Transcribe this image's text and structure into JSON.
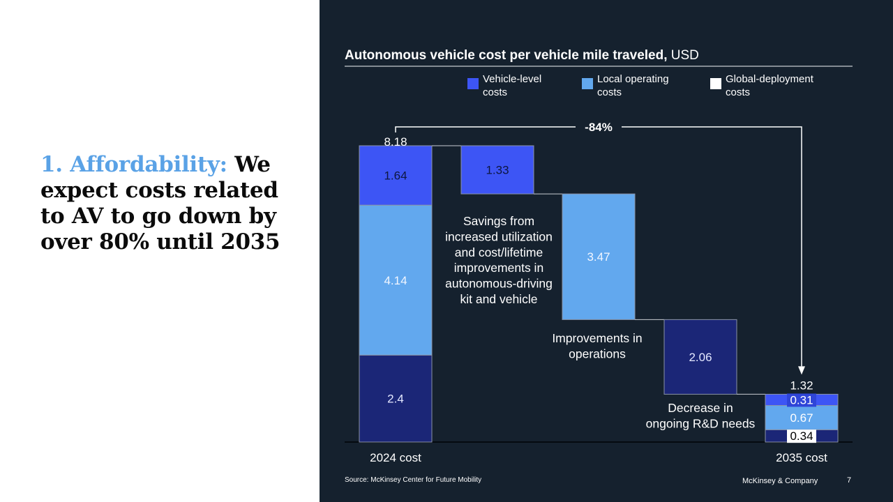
{
  "headline": {
    "accent": "1. Affordability:",
    "body": " We expect costs related to AV to go down by over 80% until 2035"
  },
  "colors": {
    "vehicle_level": "#3d55f5",
    "local_operating": "#62a8ee",
    "global_deployment": "#ffffff",
    "dark_bar": "#1b2677",
    "panel_bg": "#15212e"
  },
  "chart_data": {
    "type": "waterfall",
    "title": "Autonomous vehicle cost per vehicle mile traveled,",
    "title_unit": "USD",
    "legend": [
      {
        "key": "vehicle_level",
        "line1": "Vehicle-level",
        "line2": "costs"
      },
      {
        "key": "local_operating",
        "line1": "Local operating",
        "line2": "costs"
      },
      {
        "key": "global_deployment",
        "line1": "Global-deployment",
        "line2": "costs"
      }
    ],
    "ylim": [
      0,
      8.18
    ],
    "reduction_label": "-84%",
    "start": {
      "label": "2024 cost",
      "total": "8.18",
      "segments": [
        {
          "key": "dark",
          "value": 2.4,
          "label": "2.4"
        },
        {
          "key": "local_operating",
          "value": 4.14,
          "label": "4.14"
        },
        {
          "key": "vehicle_level",
          "value": 1.64,
          "label": "1.64"
        }
      ]
    },
    "steps": [
      {
        "key": "vehicle_level",
        "value": 1.33,
        "label": "1.33",
        "top": 8.18,
        "annotation": [
          "Savings from",
          "increased utilization",
          "and cost/lifetime",
          "improvements in",
          "autonomous-driving",
          "kit and vehicle"
        ]
      },
      {
        "key": "local_operating",
        "value": 3.47,
        "label": "3.47",
        "top": 6.85,
        "annotation": [
          "Improvements in",
          "operations"
        ]
      },
      {
        "key": "dark",
        "value": 2.06,
        "label": "2.06",
        "top": 3.38,
        "annotation": [
          "Decrease in",
          "ongoing R&D needs"
        ]
      }
    ],
    "end": {
      "label": "2035 cost",
      "total": "1.32",
      "segments": [
        {
          "key": "dark",
          "value": 0.34,
          "label": "0.34"
        },
        {
          "key": "local_operating",
          "value": 0.67,
          "label": "0.67"
        },
        {
          "key": "vehicle_level",
          "value": 0.31,
          "label": "0.31"
        }
      ]
    }
  },
  "footer": {
    "source": "Source: McKinsey Center for Future Mobility",
    "brand": "McKinsey & Company",
    "page": "7"
  }
}
